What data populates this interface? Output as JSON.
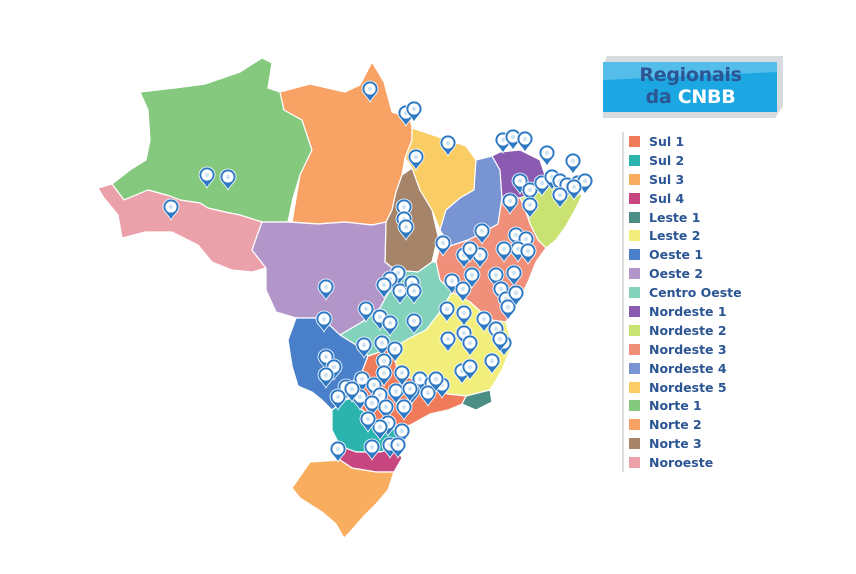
{
  "title": {
    "line1": "Regionais",
    "line2_prefix": "da ",
    "line2_highlight": "CNBB"
  },
  "colors": {
    "sul1": "#ef7b5a",
    "sul2": "#2bb3ad",
    "sul3": "#f8ae5e",
    "sul4": "#c8467f",
    "leste1": "#4a8e86",
    "leste2": "#f1ee7b",
    "oeste1": "#4a80c9",
    "oeste2": "#b296c9",
    "centro_oeste": "#83d2bc",
    "nordeste1": "#8b5bb2",
    "nordeste2": "#c9e272",
    "nordeste3": "#f0907a",
    "nordeste4": "#7994d2",
    "nordeste5": "#f9cd63",
    "norte1": "#84c97d",
    "norte2": "#f8a266",
    "norte3": "#a5846a",
    "noroeste": "#eaa1aa",
    "pin": "#2e79c3",
    "badge": "#1ca7e3"
  },
  "legend": [
    {
      "label": "Sul 1",
      "color": "#ef7b5a"
    },
    {
      "label": "Sul 2",
      "color": "#2bb3ad"
    },
    {
      "label": "Sul 3",
      "color": "#f8ae5e"
    },
    {
      "label": "Sul 4",
      "color": "#c8467f"
    },
    {
      "label": "Leste 1",
      "color": "#4a8e86"
    },
    {
      "label": "Leste 2",
      "color": "#f1ee7b"
    },
    {
      "label": "Oeste 1",
      "color": "#4a80c9"
    },
    {
      "label": "Oeste 2",
      "color": "#b296c9"
    },
    {
      "label": "Centro Oeste",
      "color": "#83d2bc"
    },
    {
      "label": "Nordeste 1",
      "color": "#8b5bb2"
    },
    {
      "label": "Nordeste 2",
      "color": "#c9e272"
    },
    {
      "label": "Nordeste 3",
      "color": "#f0907a"
    },
    {
      "label": "Nordeste 4",
      "color": "#7994d2"
    },
    {
      "label": "Nordeste 5",
      "color": "#f9cd63"
    },
    {
      "label": "Norte 1",
      "color": "#84c97d"
    },
    {
      "label": "Norte 2",
      "color": "#f8a266"
    },
    {
      "label": "Norte 3",
      "color": "#a5846a"
    },
    {
      "label": "Noroeste",
      "color": "#eaa1aa"
    }
  ],
  "pin_icon": "map-marker-icon"
}
